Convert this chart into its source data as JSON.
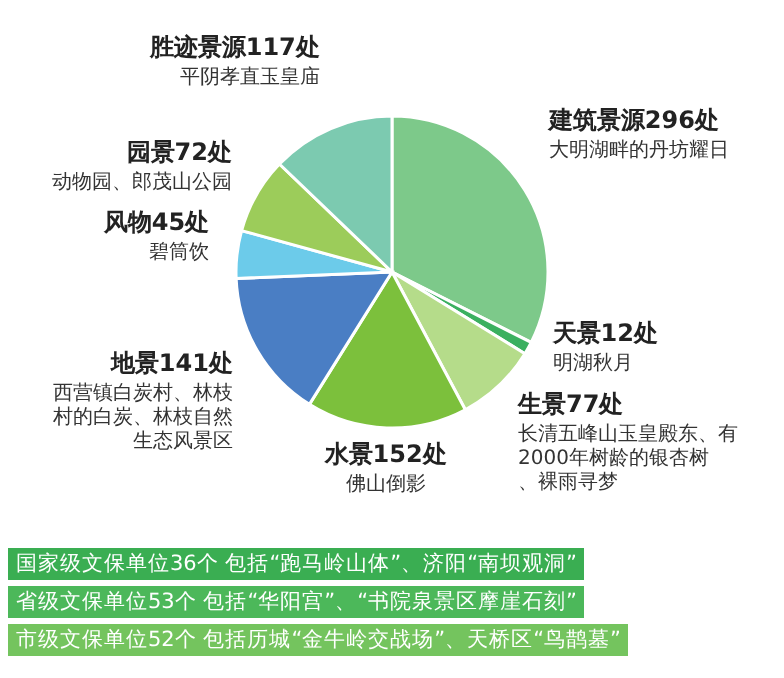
{
  "chart_data": {
    "type": "pie",
    "categories": [
      "建筑景源",
      "天景",
      "生景",
      "水景",
      "地景",
      "风物",
      "园景",
      "胜迹景源"
    ],
    "values": [
      296,
      12,
      77,
      152,
      141,
      45,
      72,
      117
    ],
    "value_labels": [
      "296处",
      "12处",
      "77处",
      "152处",
      "141处",
      "45处",
      "72处",
      "117处"
    ],
    "colors": [
      "#7dc98a",
      "#3bb060",
      "#b5dc8a",
      "#7cc03c",
      "#4a7ec4",
      "#6ccbea",
      "#9ccc5a",
      "#7ccab0"
    ],
    "annotations": [
      {
        "text": "大明湖畔的丹坊耀日",
        "x": "建筑景源"
      },
      {
        "text": "明湖秋月",
        "x": "天景"
      },
      {
        "text": "长清五峰山玉皇殿东、有2000年树龄的银杏树、裸雨寻梦",
        "x": "生景"
      },
      {
        "text": "佛山倒影",
        "x": "水景"
      },
      {
        "text": "西营镇白炭村、林枝村的白炭、林枝自然生态风景区",
        "x": "地景"
      },
      {
        "text": "碧筒饮",
        "x": "风物"
      },
      {
        "text": "动物园、郎茂山公园",
        "x": "园景"
      },
      {
        "text": "平阴孝直玉皇庙",
        "x": "胜迹景源"
      },
      "国家级文保单位36个  包括“跑马岭山体”、济阳“南坝观洞”",
      "省级文保单位53个  包括“华阳宫”、“书院泉景区摩崖石刻”",
      "市级文保单位52个  包括历城“金牛岭交战场”、天桥区“鸟鹊墓”"
    ]
  }
}
